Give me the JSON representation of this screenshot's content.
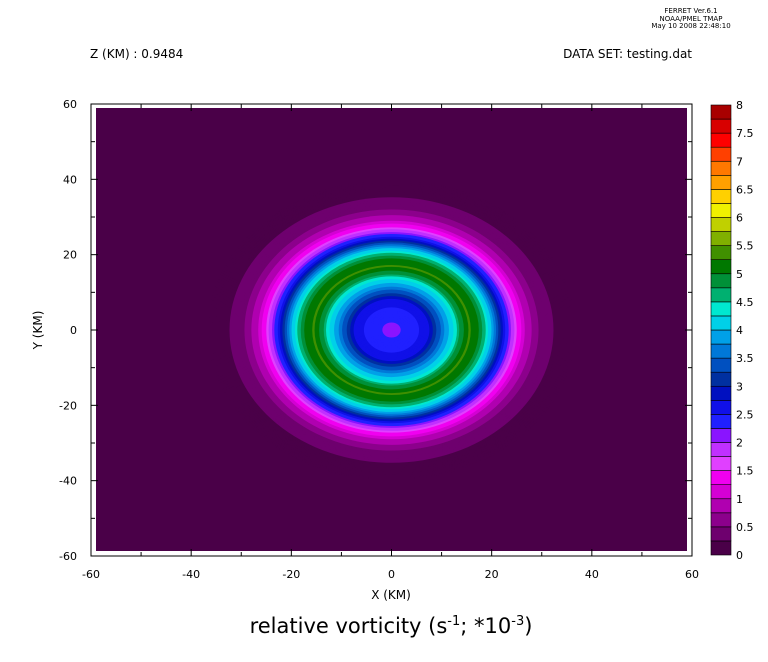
{
  "header": {
    "stamp_lines": [
      "FERRET Ver.6.1",
      "NOAA/PMEL TMAP",
      "May 10 2008 22:48:10"
    ],
    "z_label": "Z (KM) : 0.9484",
    "dataset_label": "DATA SET: testing.dat"
  },
  "chart_data": {
    "type": "heatmap",
    "title": {
      "main": "relative vorticity (s",
      "exp1": "-1",
      "mid": "; *10",
      "exp2": "-3",
      "end": ")"
    },
    "xlabel": "X (KM)",
    "ylabel": "Y (KM)",
    "xlim": [
      -60,
      60
    ],
    "ylim": [
      -60,
      60
    ],
    "x_ticks": [
      "-60",
      "-40",
      "-20",
      "0",
      "20",
      "40",
      "60"
    ],
    "y_ticks": [
      "60",
      "40",
      "20",
      "0",
      "-20",
      "-40",
      "-60"
    ],
    "field": {
      "center": [
        0,
        0
      ],
      "aspect_x_over_y": 1.22,
      "radial_profile": [
        {
          "r": 0,
          "value": 2.2
        },
        {
          "r": 4,
          "value": 2.3
        },
        {
          "r": 8,
          "value": 2.7
        },
        {
          "r": 11,
          "value": 3.6
        },
        {
          "r": 13,
          "value": 4.1
        },
        {
          "r": 15,
          "value": 4.8
        },
        {
          "r": 17,
          "value": 5.3
        },
        {
          "r": 19,
          "value": 5.0
        },
        {
          "r": 21,
          "value": 4.3
        },
        {
          "r": 23,
          "value": 3.4
        },
        {
          "r": 25,
          "value": 2.4
        },
        {
          "r": 27,
          "value": 1.6
        },
        {
          "r": 29,
          "value": 1.0
        },
        {
          "r": 32,
          "value": 0.5
        },
        {
          "r": 36,
          "value": 0.2
        },
        {
          "r": 40,
          "value": 0.0
        }
      ]
    },
    "colorbar": {
      "levels": [
        0,
        0.25,
        0.5,
        0.75,
        1,
        1.25,
        1.5,
        1.75,
        2,
        2.25,
        2.5,
        2.75,
        3,
        3.25,
        3.5,
        3.75,
        4,
        4.25,
        4.5,
        4.75,
        5,
        5.25,
        5.5,
        5.75,
        6,
        6.25,
        6.5,
        6.75,
        7,
        7.25,
        7.5,
        7.75,
        8
      ],
      "tick_labels": [
        "0",
        "0.5",
        "1",
        "1.5",
        "2",
        "2.5",
        "3",
        "3.5",
        "4",
        "4.5",
        "5",
        "5.5",
        "6",
        "6.5",
        "7",
        "7.5",
        "8"
      ],
      "colors": [
        "#4a0048",
        "#6e006e",
        "#8c008c",
        "#b000b0",
        "#d400d4",
        "#f000f0",
        "#e040ff",
        "#c030ff",
        "#8a14ff",
        "#2020ff",
        "#1010e8",
        "#0010c0",
        "#0030a0",
        "#0050c0",
        "#0078d8",
        "#00a0e8",
        "#00d0e8",
        "#00e8d0",
        "#00b070",
        "#009038",
        "#007800",
        "#409000",
        "#80b000",
        "#c0d000",
        "#f0f000",
        "#ffd000",
        "#ffa000",
        "#ff7800",
        "#ff4000",
        "#ff0000",
        "#d80000",
        "#a80000",
        "#7a0000"
      ]
    }
  }
}
